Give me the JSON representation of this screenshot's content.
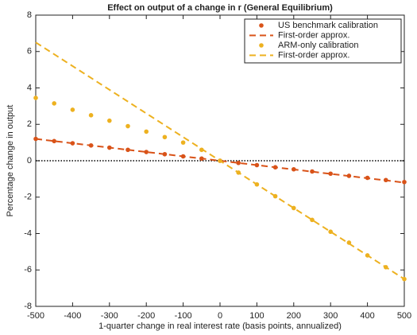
{
  "chart_data": {
    "type": "line",
    "title": "Effect on output of a change in r (General Equilibrium)",
    "xlabel": "1-quarter change in real interest rate (basis points, annualized)",
    "ylabel": "Percentage change in output",
    "xlim": [
      -500,
      500
    ],
    "ylim": [
      -8,
      8
    ],
    "xticks": [
      -500,
      -400,
      -300,
      -200,
      -100,
      0,
      100,
      200,
      300,
      400,
      500
    ],
    "yticks": [
      -8,
      -6,
      -4,
      -2,
      0,
      2,
      4,
      6,
      8
    ],
    "hline": 0,
    "legend": "upper right",
    "series": [
      {
        "name": "US benchmark calibration",
        "color": "#d95319",
        "style": "markers",
        "x": [
          -500,
          -450,
          -400,
          -350,
          -300,
          -250,
          -200,
          -150,
          -100,
          -50,
          0,
          50,
          100,
          150,
          200,
          250,
          300,
          350,
          400,
          450,
          500
        ],
        "values": [
          1.2,
          1.08,
          0.96,
          0.84,
          0.72,
          0.6,
          0.48,
          0.36,
          0.24,
          0.12,
          0,
          -0.12,
          -0.24,
          -0.36,
          -0.47,
          -0.59,
          -0.71,
          -0.83,
          -0.94,
          -1.06,
          -1.17
        ]
      },
      {
        "name": "First-order approx.",
        "color": "#d95319",
        "style": "dashed",
        "x": [
          -500,
          500
        ],
        "values": [
          1.2,
          -1.2
        ]
      },
      {
        "name": "ARM-only calibration",
        "color": "#edb120",
        "style": "markers",
        "x": [
          -500,
          -450,
          -400,
          -350,
          -300,
          -250,
          -200,
          -150,
          -100,
          -50,
          0,
          50,
          100,
          150,
          200,
          250,
          300,
          350,
          400,
          450,
          500
        ],
        "values": [
          3.45,
          3.15,
          2.8,
          2.5,
          2.2,
          1.9,
          1.6,
          1.3,
          1.0,
          0.6,
          0,
          -0.65,
          -1.3,
          -1.95,
          -2.6,
          -3.25,
          -3.9,
          -4.5,
          -5.2,
          -5.85,
          -6.5
        ]
      },
      {
        "name": "First-order approx.",
        "color": "#edb120",
        "style": "dashed",
        "x": [
          -500,
          500
        ],
        "values": [
          6.5,
          -6.5
        ]
      }
    ]
  }
}
